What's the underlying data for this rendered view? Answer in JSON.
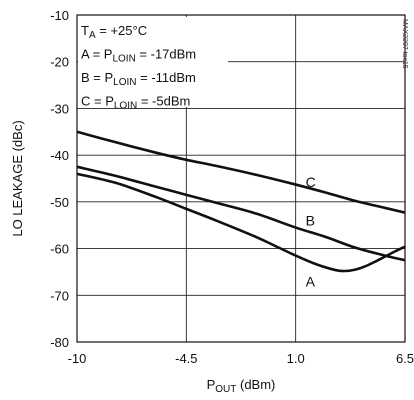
{
  "chart_data": {
    "type": "line",
    "xlabel_main": "P",
    "xlabel_sub": "OUT",
    "xlabel_unit": " (dBm)",
    "ylabel": "LO LEAKAGE (dBc)",
    "xlim": [
      -10,
      6.5
    ],
    "ylim": [
      -80,
      -10
    ],
    "xticks": [
      -10,
      -4.5,
      1.0,
      6.5
    ],
    "xtick_labels": [
      "-10",
      "-4.5",
      "1.0",
      "6.5"
    ],
    "yticks": [
      -80,
      -70,
      -60,
      -50,
      -40,
      -30,
      -20,
      -10
    ],
    "ytick_labels": [
      "-80",
      "-70",
      "-60",
      "-50",
      "-40",
      "-30",
      "-20",
      "-10"
    ],
    "grid": true,
    "watermark": "MAX2207 toc15",
    "annotation": {
      "ta_main": "T",
      "ta_sub": "A",
      "ta_rest": " = +25°C",
      "lines": [
        {
          "prefix": "A = P",
          "sub": "LOIN",
          "suffix": " = -17dBm"
        },
        {
          "prefix": "B = P",
          "sub": "LOIN",
          "suffix": " = -11dBm"
        },
        {
          "prefix": "C = P",
          "sub": "LOIN",
          "suffix": " = -5dBm"
        }
      ]
    },
    "series": [
      {
        "name": "A",
        "label_at": [
          1.5,
          -67
        ],
        "x": [
          -10,
          -8,
          -6,
          -4.5,
          -3,
          -1,
          0,
          1,
          2,
          3,
          3.5,
          4,
          4.5,
          5,
          5.5,
          6,
          6.5
        ],
        "y": [
          -44,
          -46,
          -49,
          -51.5,
          -54,
          -57.5,
          -59.5,
          -61.5,
          -63.3,
          -64.6,
          -64.8,
          -64.5,
          -63.8,
          -62.8,
          -61.7,
          -60.6,
          -59.6
        ]
      },
      {
        "name": "B",
        "label_at": [
          1.5,
          -54
        ],
        "x": [
          -10,
          -8,
          -6,
          -4.5,
          -3,
          -1,
          1,
          2.5,
          4,
          5.5,
          6.5
        ],
        "y": [
          -42.5,
          -44.5,
          -46.8,
          -48.5,
          -50.2,
          -52.5,
          -55.5,
          -57.5,
          -59.8,
          -61.5,
          -62.5
        ]
      },
      {
        "name": "C",
        "label_at": [
          1.5,
          -45.8
        ],
        "x": [
          -10,
          -8,
          -6,
          -4.5,
          -3,
          -1,
          1,
          2.5,
          4,
          5.5,
          6.5
        ],
        "y": [
          -35,
          -37.3,
          -39.5,
          -41,
          -42.3,
          -44.2,
          -46.3,
          -48,
          -49.8,
          -51.3,
          -52.3
        ]
      }
    ]
  }
}
